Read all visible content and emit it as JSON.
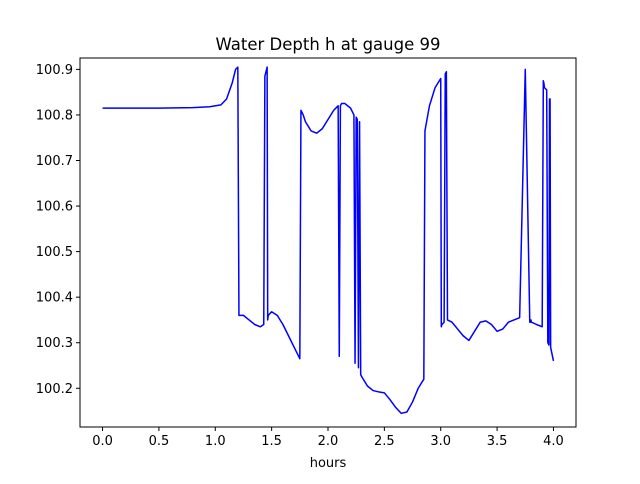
{
  "chart_data": {
    "type": "line",
    "title": "Water Depth h at gauge 99",
    "xlabel": "hours",
    "ylabel": "",
    "xlim": [
      -0.2,
      4.2
    ],
    "ylim": [
      100.115,
      100.925
    ],
    "xticks": [
      0.0,
      0.5,
      1.0,
      1.5,
      2.0,
      2.5,
      3.0,
      3.5,
      4.0
    ],
    "xtick_labels": [
      "0.0",
      "0.5",
      "1.0",
      "1.5",
      "2.0",
      "2.5",
      "3.0",
      "3.5",
      "4.0"
    ],
    "yticks": [
      100.2,
      100.3,
      100.4,
      100.5,
      100.6,
      100.7,
      100.8,
      100.9
    ],
    "ytick_labels": [
      "100.2",
      "100.3",
      "100.4",
      "100.5",
      "100.6",
      "100.7",
      "100.8",
      "100.9"
    ],
    "grid": false,
    "series": [
      {
        "color": "#0000ff",
        "x": [
          0.0,
          0.2,
          0.5,
          0.8,
          0.95,
          1.05,
          1.1,
          1.15,
          1.18,
          1.2,
          1.21,
          1.215,
          1.22,
          1.25,
          1.3,
          1.35,
          1.4,
          1.43,
          1.44,
          1.45,
          1.46,
          1.465,
          1.47,
          1.5,
          1.55,
          1.6,
          1.65,
          1.7,
          1.75,
          1.76,
          1.78,
          1.8,
          1.85,
          1.9,
          1.95,
          2.0,
          2.05,
          2.09,
          2.1,
          2.11,
          2.12,
          2.15,
          2.2,
          2.23,
          2.24,
          2.25,
          2.26,
          2.27,
          2.28,
          2.29,
          2.3,
          2.35,
          2.4,
          2.45,
          2.5,
          2.55,
          2.6,
          2.65,
          2.7,
          2.75,
          2.8,
          2.85,
          2.86,
          2.9,
          2.95,
          3.0,
          3.005,
          3.01,
          3.03,
          3.04,
          3.05,
          3.06,
          3.1,
          3.15,
          3.2,
          3.25,
          3.3,
          3.35,
          3.4,
          3.45,
          3.5,
          3.55,
          3.6,
          3.65,
          3.7,
          3.75,
          3.79,
          3.795,
          3.8,
          3.805,
          3.85,
          3.9,
          3.91,
          3.915,
          3.92,
          3.94,
          3.95,
          3.96,
          3.965,
          3.97,
          3.975,
          4.0
        ],
        "y": [
          100.815,
          100.815,
          100.815,
          100.816,
          100.818,
          100.822,
          100.835,
          100.87,
          100.9,
          100.905,
          100.36,
          100.36,
          100.36,
          100.36,
          100.35,
          100.34,
          100.335,
          100.34,
          100.885,
          100.895,
          100.905,
          100.35,
          100.36,
          100.368,
          100.36,
          100.34,
          100.315,
          100.29,
          100.265,
          100.81,
          100.8,
          100.785,
          100.765,
          100.76,
          100.77,
          100.79,
          100.81,
          100.82,
          100.27,
          100.82,
          100.825,
          100.825,
          100.815,
          100.8,
          100.255,
          100.795,
          100.79,
          100.245,
          100.785,
          100.23,
          100.225,
          100.205,
          100.195,
          100.192,
          100.19,
          100.175,
          100.158,
          100.145,
          100.148,
          100.17,
          100.2,
          100.22,
          100.765,
          100.82,
          100.86,
          100.88,
          100.335,
          100.34,
          100.345,
          100.89,
          100.895,
          100.35,
          100.345,
          100.33,
          100.315,
          100.305,
          100.325,
          100.345,
          100.348,
          100.34,
          100.325,
          100.33,
          100.345,
          100.35,
          100.355,
          100.9,
          100.345,
          100.345,
          100.35,
          100.345,
          100.34,
          100.335,
          100.875,
          100.87,
          100.86,
          100.855,
          100.3,
          100.295,
          100.835,
          100.835,
          100.29,
          100.26
        ]
      }
    ]
  }
}
